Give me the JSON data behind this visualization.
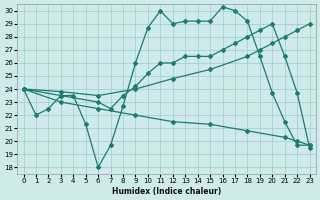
{
  "xlabel": "Humidex (Indice chaleur)",
  "bg_color": "#ceeaea",
  "grid_color": "#a8cfcf",
  "line_color": "#1e7b70",
  "xlim": [
    -0.5,
    23.5
  ],
  "ylim": [
    17.5,
    30.5
  ],
  "xticks": [
    0,
    1,
    2,
    3,
    4,
    5,
    6,
    7,
    8,
    9,
    10,
    11,
    12,
    13,
    14,
    15,
    16,
    17,
    18,
    19,
    20,
    21,
    22,
    23
  ],
  "yticks": [
    18,
    19,
    20,
    21,
    22,
    23,
    24,
    25,
    26,
    27,
    28,
    29,
    30
  ],
  "line1_x": [
    0,
    1,
    2,
    3,
    4,
    5,
    6,
    7,
    8,
    9,
    10,
    11,
    12,
    13,
    14,
    15,
    16,
    17,
    18,
    19,
    20,
    21,
    22,
    23
  ],
  "line1_y": [
    24,
    22,
    22.5,
    23.5,
    23.5,
    21.3,
    18,
    19.7,
    22.7,
    26,
    28.7,
    30,
    29,
    29.2,
    29.2,
    29.2,
    30.3,
    30,
    29.2,
    26.5,
    23.7,
    21.5,
    19.7,
    19.7
  ],
  "line2_x": [
    0,
    3,
    6,
    9,
    12,
    15,
    18,
    19,
    20,
    21,
    22,
    23
  ],
  "line2_y": [
    24,
    23.8,
    23.5,
    24.0,
    24.8,
    25.5,
    26.5,
    27.0,
    27.5,
    28.0,
    28.5,
    29.0
  ],
  "line3_x": [
    0,
    3,
    6,
    7,
    8,
    9,
    10,
    11,
    12,
    13,
    14,
    15,
    16,
    17,
    18,
    19,
    20,
    21,
    22,
    23
  ],
  "line3_y": [
    24,
    23.5,
    23.0,
    22.5,
    23.5,
    24.2,
    25.2,
    26.0,
    26.0,
    26.5,
    26.5,
    26.5,
    27.0,
    27.5,
    28.0,
    28.5,
    29.0,
    26.5,
    23.7,
    19.5
  ],
  "line4_x": [
    0,
    3,
    6,
    9,
    12,
    15,
    18,
    21,
    22,
    23
  ],
  "line4_y": [
    24,
    23.0,
    22.5,
    22.0,
    21.5,
    21.3,
    20.8,
    20.3,
    20.0,
    19.7
  ]
}
